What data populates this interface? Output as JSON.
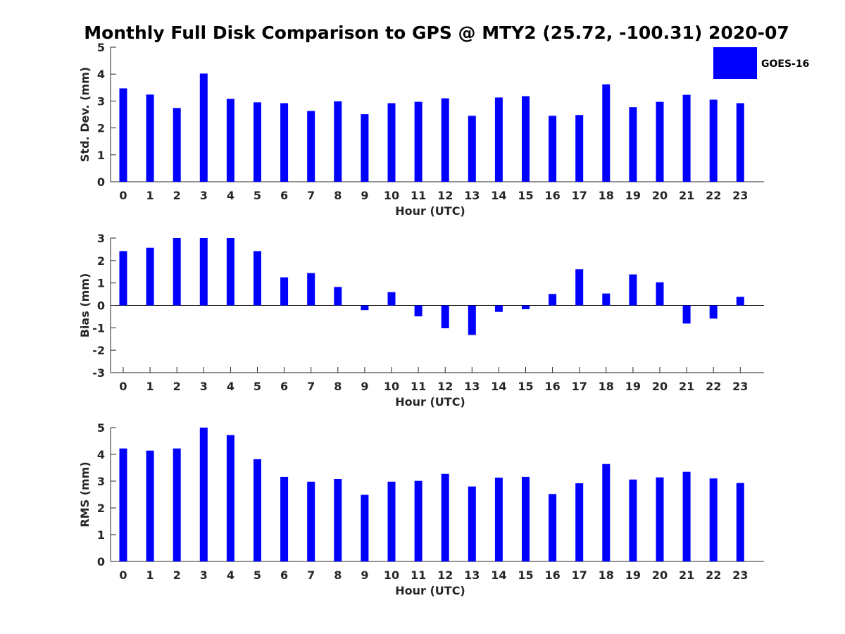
{
  "title": "Monthly Full Disk Comparison to GPS @ MTY2 (25.72, -100.31) 2020-07",
  "legend": {
    "label": "GOES-16",
    "color": "#0000ff",
    "placement": "top-right"
  },
  "chart_data": [
    {
      "type": "bar",
      "xlabel": "Hour (UTC)",
      "ylabel": "Std. Dev. (mm)",
      "ylim": [
        0,
        5
      ],
      "yticks": [
        "0",
        "1",
        "2",
        "3",
        "4",
        "5"
      ],
      "categories": [
        "0",
        "1",
        "2",
        "3",
        "4",
        "5",
        "6",
        "7",
        "8",
        "9",
        "10",
        "11",
        "12",
        "13",
        "14",
        "15",
        "16",
        "17",
        "18",
        "19",
        "20",
        "21",
        "22",
        "23"
      ],
      "series": [
        {
          "name": "GOES-16",
          "color": "#0000ff",
          "values": [
            3.47,
            3.24,
            2.74,
            4.02,
            3.08,
            2.95,
            2.92,
            2.63,
            2.99,
            2.51,
            2.92,
            2.97,
            3.1,
            2.45,
            3.13,
            3.18,
            2.45,
            2.48,
            3.62,
            2.77,
            2.97,
            3.23,
            3.05,
            2.92
          ]
        }
      ]
    },
    {
      "type": "bar",
      "xlabel": "Hour (UTC)",
      "ylabel": "Bias (mm)",
      "ylim": [
        -3,
        3
      ],
      "yticks": [
        "-3",
        "-2",
        "-1",
        "0",
        "1",
        "2",
        "3"
      ],
      "categories": [
        "0",
        "1",
        "2",
        "3",
        "4",
        "5",
        "6",
        "7",
        "8",
        "9",
        "10",
        "11",
        "12",
        "13",
        "14",
        "15",
        "16",
        "17",
        "18",
        "19",
        "20",
        "21",
        "22",
        "23"
      ],
      "series": [
        {
          "name": "GOES-16",
          "color": "#0000ff",
          "values": [
            2.42,
            2.57,
            3.0,
            3.0,
            3.0,
            2.42,
            1.25,
            1.44,
            0.82,
            -0.21,
            0.59,
            -0.49,
            -1.02,
            -1.32,
            -0.29,
            -0.17,
            0.51,
            1.61,
            0.53,
            1.38,
            1.03,
            -0.81,
            -0.59,
            0.38
          ]
        }
      ]
    },
    {
      "type": "bar",
      "xlabel": "Hour (UTC)",
      "ylabel": "RMS (mm)",
      "ylim": [
        0,
        5
      ],
      "yticks": [
        "0",
        "1",
        "2",
        "3",
        "4",
        "5"
      ],
      "categories": [
        "0",
        "1",
        "2",
        "3",
        "4",
        "5",
        "6",
        "7",
        "8",
        "9",
        "10",
        "11",
        "12",
        "13",
        "14",
        "15",
        "16",
        "17",
        "18",
        "19",
        "20",
        "21",
        "22",
        "23"
      ],
      "series": [
        {
          "name": "GOES-16",
          "color": "#0000ff",
          "values": [
            4.22,
            4.14,
            4.22,
            5.0,
            4.72,
            3.82,
            3.16,
            2.98,
            3.08,
            2.49,
            2.98,
            3.01,
            3.27,
            2.8,
            3.13,
            3.16,
            2.52,
            2.92,
            3.64,
            3.06,
            3.14,
            3.35,
            3.1,
            2.93
          ]
        }
      ]
    }
  ]
}
